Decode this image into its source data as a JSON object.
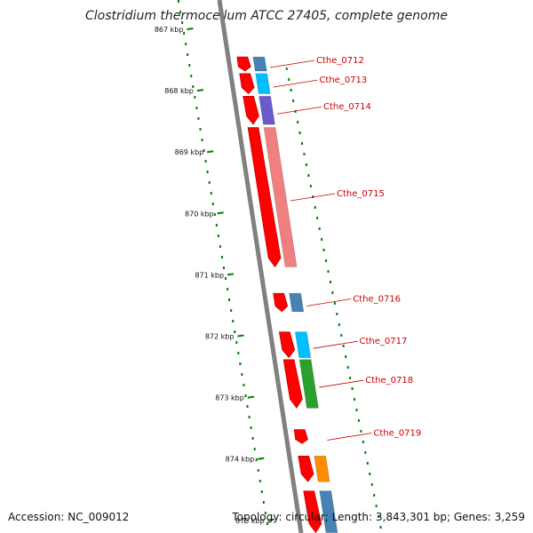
{
  "title": "Clostridium thermocellum ATCC 27405, complete genome",
  "footer": {
    "accession": "Accession: NC_009012",
    "topology": "Topology: circular; Length: 3,843,301 bp; Genes: 3,259"
  },
  "colors": {
    "backbone": "#808080",
    "forward_gene": "#ff0000",
    "gc_skew": "#008000",
    "label": "#cc0000"
  },
  "ruler": {
    "ticks": [
      {
        "label": "867 kbp",
        "kbp": 867
      },
      {
        "label": "868 kbp",
        "kbp": 868
      },
      {
        "label": "869 kbp",
        "kbp": 869
      },
      {
        "label": "870 kbp",
        "kbp": 870
      },
      {
        "label": "871 kbp",
        "kbp": 871
      },
      {
        "label": "872 kbp",
        "kbp": 872
      },
      {
        "label": "873 kbp",
        "kbp": 873
      },
      {
        "label": "874 kbp",
        "kbp": 874
      },
      {
        "label": "875 kbp",
        "kbp": 875
      }
    ]
  },
  "genes": [
    {
      "label": "Cthe_0712",
      "start_kbp": 867.45,
      "end_kbp": 867.68,
      "cog_color": "#4682b4"
    },
    {
      "label": "Cthe_0713",
      "start_kbp": 867.72,
      "end_kbp": 868.05,
      "cog_color": "#00bfff"
    },
    {
      "label": "Cthe_0714",
      "start_kbp": 868.09,
      "end_kbp": 868.55,
      "cog_color": "#6a5acd"
    },
    {
      "label": "Cthe_0715",
      "start_kbp": 868.6,
      "end_kbp": 870.87,
      "cog_color": "#f08080"
    },
    {
      "label": "Cthe_0716",
      "start_kbp": 871.3,
      "end_kbp": 871.6,
      "cog_color": "#4682b4"
    },
    {
      "label": "Cthe_0717",
      "start_kbp": 871.93,
      "end_kbp": 872.35,
      "cog_color": "#00bfff"
    },
    {
      "label": "Cthe_0718",
      "start_kbp": 872.38,
      "end_kbp": 873.17,
      "cog_color": "#2ca02c"
    },
    {
      "label": "Cthe_0719",
      "start_kbp": 873.52,
      "end_kbp": 873.75,
      "cog_color": ""
    },
    {
      "label": "",
      "start_kbp": 873.95,
      "end_kbp": 874.37,
      "cog_color": "#ff8c00"
    },
    {
      "label": "",
      "start_kbp": 874.52,
      "end_kbp": 875.2,
      "cog_color": "#4682b4"
    }
  ]
}
